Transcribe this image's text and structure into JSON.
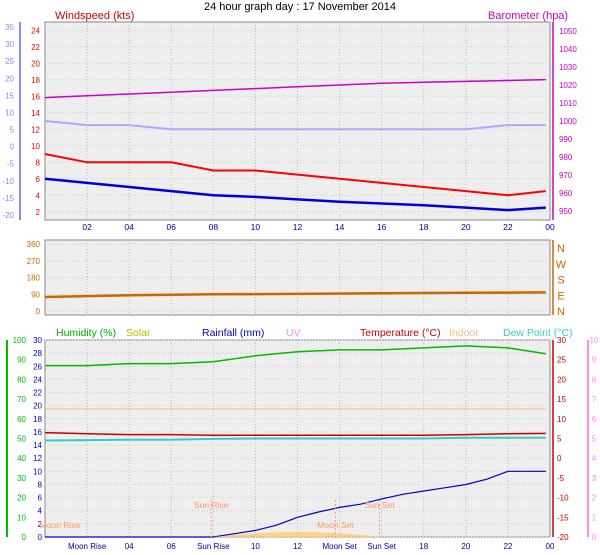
{
  "page_title": "24 hour graph day : 17 November 2014",
  "colors": {
    "windspeed": "#ff0000",
    "gust_avg": "#0000dd",
    "wind_left_axis": "#8888ff",
    "barometer": "#cc00cc",
    "temp_outdoor_avg": "#aaaaff",
    "direction": "#cc6600",
    "humidity": "#00bb00",
    "solar": "#cccc00",
    "rainfall": "#0000cc",
    "uv": "#ff88ff",
    "temperature": "#cc0000",
    "indoor": "#ffbb88",
    "dewpoint": "#33cccc",
    "sun_marker": "#ff9966",
    "moon_marker": "#ff9966",
    "xtick": "#000099",
    "panel_bg": "#eeeeee"
  },
  "chart_data": [
    {
      "type": "line",
      "title": "Windspeed (kts)",
      "right_title": "Barometer (hpa)",
      "xticks": [
        "02",
        "04",
        "06",
        "08",
        "10",
        "12",
        "14",
        "16",
        "18",
        "20",
        "22",
        "00"
      ],
      "left_axis": {
        "ticks": [
          "24",
          "22",
          "20",
          "18",
          "16",
          "14",
          "12",
          "10",
          "8",
          "6",
          "4",
          "2"
        ],
        "ylim": [
          1,
          25
        ]
      },
      "left_outer_axis": {
        "ticks": [
          "35",
          "30",
          "25",
          "20",
          "15",
          "10",
          "5",
          "0",
          "-5",
          "-10",
          "-15",
          "-20"
        ]
      },
      "right_axis": {
        "ticks": [
          "1050",
          "1040",
          "1030",
          "1020",
          "1010",
          "1000",
          "990",
          "980",
          "970",
          "960",
          "950"
        ],
        "ylim": [
          945,
          1055
        ]
      },
      "series": [
        {
          "name": "Windspeed (kts)",
          "x": [
            0,
            2,
            4,
            6,
            8,
            10,
            12,
            14,
            16,
            18,
            20,
            22,
            23.8
          ],
          "y": [
            9,
            8,
            8,
            8,
            7,
            7,
            6.5,
            6,
            5.5,
            5,
            4.5,
            4,
            4.5
          ]
        },
        {
          "name": "",
          "x": [
            0,
            2,
            4,
            6,
            8,
            10,
            12,
            14,
            16,
            18,
            20,
            22,
            23.8
          ],
          "y": [
            6,
            5.5,
            5,
            4.5,
            4,
            3.8,
            3.5,
            3.2,
            3,
            2.8,
            2.5,
            2.2,
            2.5
          ]
        },
        {
          "name": "Barometer (hpa)",
          "x": [
            0,
            2,
            4,
            6,
            8,
            10,
            12,
            14,
            16,
            18,
            20,
            22,
            23.8
          ],
          "y": [
            1013,
            1014,
            1015,
            1016,
            1017,
            1018,
            1019,
            1020,
            1021,
            1021.5,
            1022,
            1022.5,
            1023
          ]
        },
        {
          "name": "",
          "x": [
            0,
            2,
            4,
            6,
            8,
            10,
            12,
            14,
            16,
            18,
            20,
            22,
            23.8
          ],
          "y": [
            13,
            12.5,
            12.5,
            12,
            12,
            12,
            12,
            12,
            12,
            12,
            12,
            12.5,
            12.5
          ]
        }
      ]
    },
    {
      "type": "line",
      "title": "",
      "right_labels": [
        "N",
        "W",
        "S",
        "E",
        "N"
      ],
      "left_axis": {
        "ticks": [
          "360",
          "270",
          "180",
          "90",
          "0"
        ],
        "ylim": [
          0,
          360
        ]
      },
      "xticks": [],
      "series": [
        {
          "name": "",
          "x": [
            0,
            4,
            8,
            12,
            16,
            20,
            23.8
          ],
          "y": [
            75,
            85,
            90,
            92,
            95,
            98,
            100
          ]
        }
      ]
    },
    {
      "type": "line",
      "legend": [
        "Humidity (%)",
        "Solar",
        "Rainfall (mm)",
        "UV",
        "Temperature (°C)",
        "Indoor",
        "Dew Point (°C)"
      ],
      "xticks": [
        "Moon Rise",
        "04",
        "06",
        "Sun Rise",
        "10",
        "12",
        "Moon Set",
        "Sun Set",
        "18",
        "20",
        "22",
        "00"
      ],
      "axis_humidity": {
        "ticks": [
          "100",
          "90",
          "80",
          "70",
          "60",
          "50",
          "40",
          "30",
          "20",
          "10",
          "0"
        ],
        "ylim": [
          0,
          100
        ]
      },
      "axis_rain": {
        "ticks": [
          "30",
          "28",
          "26",
          "24",
          "22",
          "20",
          "18",
          "16",
          "14",
          "12",
          "10",
          "8",
          "6",
          "4",
          "2",
          "0"
        ],
        "ylim": [
          0,
          30
        ]
      },
      "axis_temp_right": {
        "ticks": [
          "30",
          "25",
          "20",
          "15",
          "10",
          "5",
          "0",
          "-5",
          "-10",
          "-15",
          "-20"
        ],
        "ylim": [
          -20,
          30
        ]
      },
      "axis_uv": {
        "ticks": [
          "10",
          "9",
          "8",
          "7",
          "6",
          "5",
          "4",
          "3",
          "2",
          "1",
          "0"
        ],
        "ylim": [
          0,
          10
        ]
      },
      "series": [
        {
          "name": "Humidity (%)",
          "x": [
            0,
            2,
            4,
            6,
            8,
            10,
            12,
            14,
            16,
            18,
            20,
            22,
            23.8
          ],
          "y": [
            87,
            87,
            88,
            88,
            89,
            92,
            94,
            95,
            95,
            96,
            97,
            96,
            93
          ]
        },
        {
          "name": "Temperature (°C)",
          "x": [
            0,
            2,
            4,
            6,
            8,
            10,
            12,
            14,
            16,
            18,
            20,
            22,
            23.8
          ],
          "y": [
            6.5,
            6.2,
            6,
            6,
            5.8,
            5.8,
            5.8,
            5.8,
            5.8,
            5.8,
            6,
            6.2,
            6.3
          ]
        },
        {
          "name": "Dew Point (°C)",
          "x": [
            0,
            2,
            4,
            6,
            8,
            10,
            12,
            14,
            16,
            18,
            20,
            22,
            23.8
          ],
          "y": [
            4.5,
            4.6,
            4.7,
            4.7,
            4.9,
            5,
            5,
            5,
            5,
            5,
            5.2,
            5.2,
            5.2
          ]
        },
        {
          "name": "Rainfall (mm)",
          "x": [
            0,
            8,
            9,
            10,
            11,
            12,
            13,
            14,
            15,
            16,
            17,
            18,
            19,
            20,
            21,
            22,
            23.8
          ],
          "y": [
            0,
            0,
            0.5,
            1,
            1.8,
            3,
            3.8,
            4.5,
            5,
            5.8,
            6.5,
            7,
            7.5,
            8,
            8.8,
            10,
            10
          ]
        },
        {
          "name": "Indoor",
          "x": [
            0,
            23.8
          ],
          "y": [
            12.5,
            12.5
          ]
        }
      ],
      "markers": [
        {
          "label": "Moon Rise",
          "x": 0.3
        },
        {
          "label": "Sun Rise",
          "x": 7.9
        },
        {
          "label": "Moon Set",
          "x": 13.8
        },
        {
          "label": "Sun Set",
          "x": 15.9
        }
      ]
    }
  ]
}
